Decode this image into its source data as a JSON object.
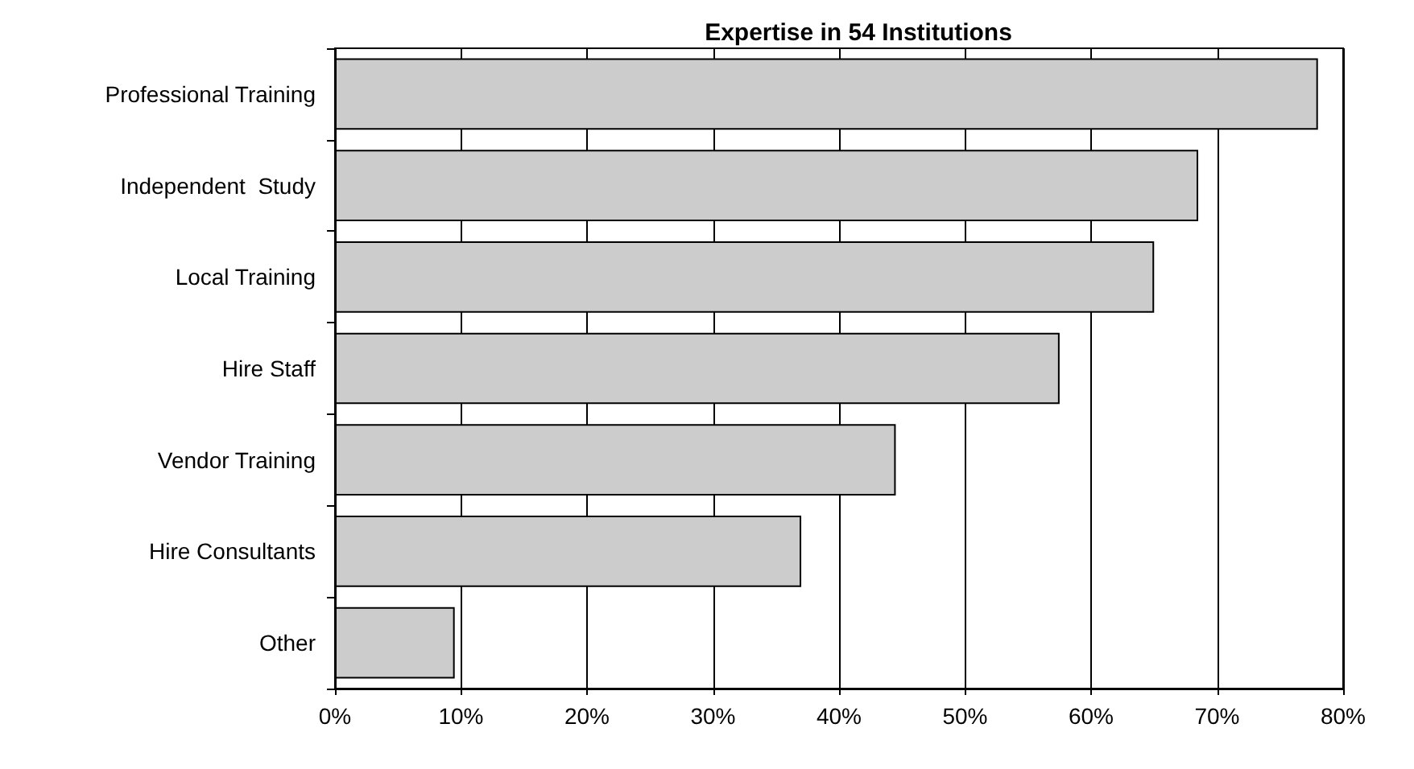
{
  "chart_data": {
    "type": "bar",
    "orientation": "horizontal",
    "title": "Expertise in 54 Institutions",
    "categories": [
      "Professional Training",
      "Independent  Study",
      "Local Training",
      "Hire Staff",
      "Vendor Training",
      "Hire Consultants",
      "Other"
    ],
    "values": [
      78,
      68.5,
      65,
      57.5,
      44.5,
      37,
      9.5
    ],
    "color": "#cccccc",
    "xlim": [
      0,
      80
    ],
    "xticks": [
      {
        "value": 0,
        "label": "0%"
      },
      {
        "value": 10,
        "label": "10%"
      },
      {
        "value": 20,
        "label": "20%"
      },
      {
        "value": 30,
        "label": "30%"
      },
      {
        "value": 40,
        "label": "40%"
      },
      {
        "value": 50,
        "label": "50%"
      },
      {
        "value": 60,
        "label": "60%"
      },
      {
        "value": 70,
        "label": "70%"
      },
      {
        "value": 80,
        "label": "80%"
      }
    ],
    "grid": "x"
  }
}
